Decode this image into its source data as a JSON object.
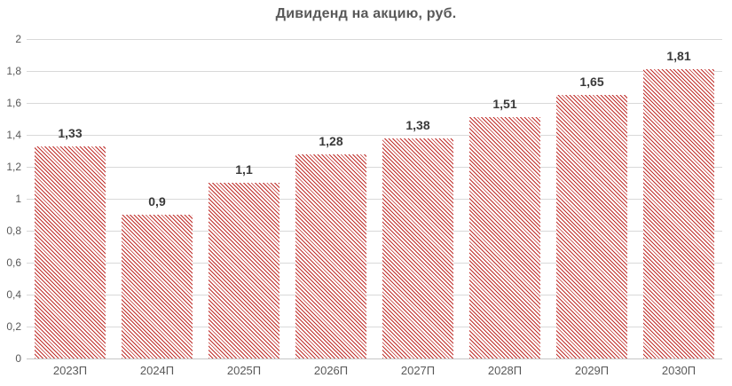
{
  "chart_data": {
    "type": "bar",
    "title": "Дивиденд на акцию, руб.",
    "xlabel": "",
    "ylabel": "",
    "categories": [
      "2023П",
      "2024П",
      "2025П",
      "2026П",
      "2027П",
      "2028П",
      "2029П",
      "2030П"
    ],
    "values": [
      1.33,
      0.9,
      1.1,
      1.28,
      1.38,
      1.51,
      1.65,
      1.81
    ],
    "value_labels": [
      "1,33",
      "0,9",
      "1,1",
      "1,28",
      "1,38",
      "1,51",
      "1,65",
      "1,81"
    ],
    "ylim": [
      0,
      2
    ],
    "ytick_values": [
      0,
      0.2,
      0.4,
      0.6,
      0.8,
      1,
      1.2,
      1.4,
      1.6,
      1.8,
      2
    ],
    "ytick_labels": [
      "0",
      "0,2",
      "0,4",
      "0,6",
      "0,8",
      "1",
      "1,2",
      "1,4",
      "1,6",
      "1,8",
      "2"
    ],
    "grid": true,
    "legend": "none",
    "bar_pattern": "diagonal-hatch-backslash",
    "colors": {
      "hatch": "#bf2e2a",
      "bar_background": "#ffffff",
      "gridline": "#d9d9d9",
      "axis_line": "#c6c6c6",
      "title": "#595959",
      "tick_label": "#595959",
      "value_label": "#3a3a3a",
      "page_background": "#ffffff"
    }
  }
}
